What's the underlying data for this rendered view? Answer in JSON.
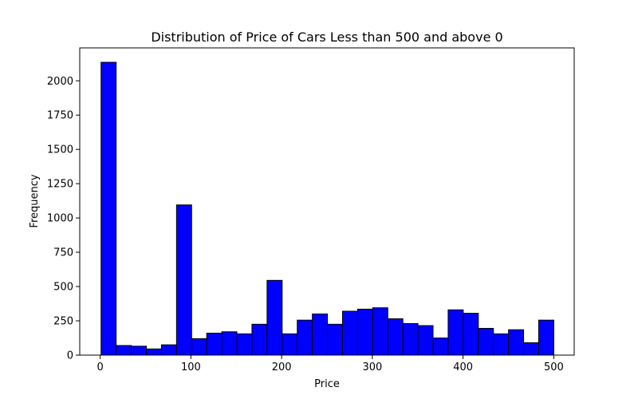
{
  "chart_data": {
    "type": "bar",
    "title": "Distribution of Price of Cars Less than 500 and above 0",
    "xlabel": "Price",
    "ylabel": "Frequency",
    "xlim": [
      -22.5,
      522.5
    ],
    "ylim": [
      0,
      2240
    ],
    "x_ticks": [
      0,
      100,
      200,
      300,
      400,
      500
    ],
    "y_ticks": [
      0,
      250,
      500,
      750,
      1000,
      1250,
      1500,
      1750,
      2000
    ],
    "bin_edges": [
      1,
      17.63,
      34.27,
      50.9,
      67.53,
      84.17,
      100.8,
      117.43,
      134.07,
      150.7,
      167.33,
      183.97,
      200.6,
      217.23,
      233.87,
      250.5,
      267.13,
      283.77,
      300.4,
      317.03,
      333.67,
      350.3,
      366.93,
      383.57,
      400.2,
      416.83,
      433.47,
      450.1,
      466.73,
      483.37,
      500
    ],
    "values": [
      2135,
      70,
      65,
      45,
      75,
      1095,
      120,
      160,
      170,
      155,
      225,
      545,
      155,
      255,
      300,
      225,
      320,
      335,
      345,
      265,
      230,
      215,
      125,
      330,
      305,
      195,
      155,
      185,
      90,
      255
    ],
    "bar_color": "#0000ff",
    "edge_color": "#000000",
    "grid": false,
    "legend": false
  }
}
